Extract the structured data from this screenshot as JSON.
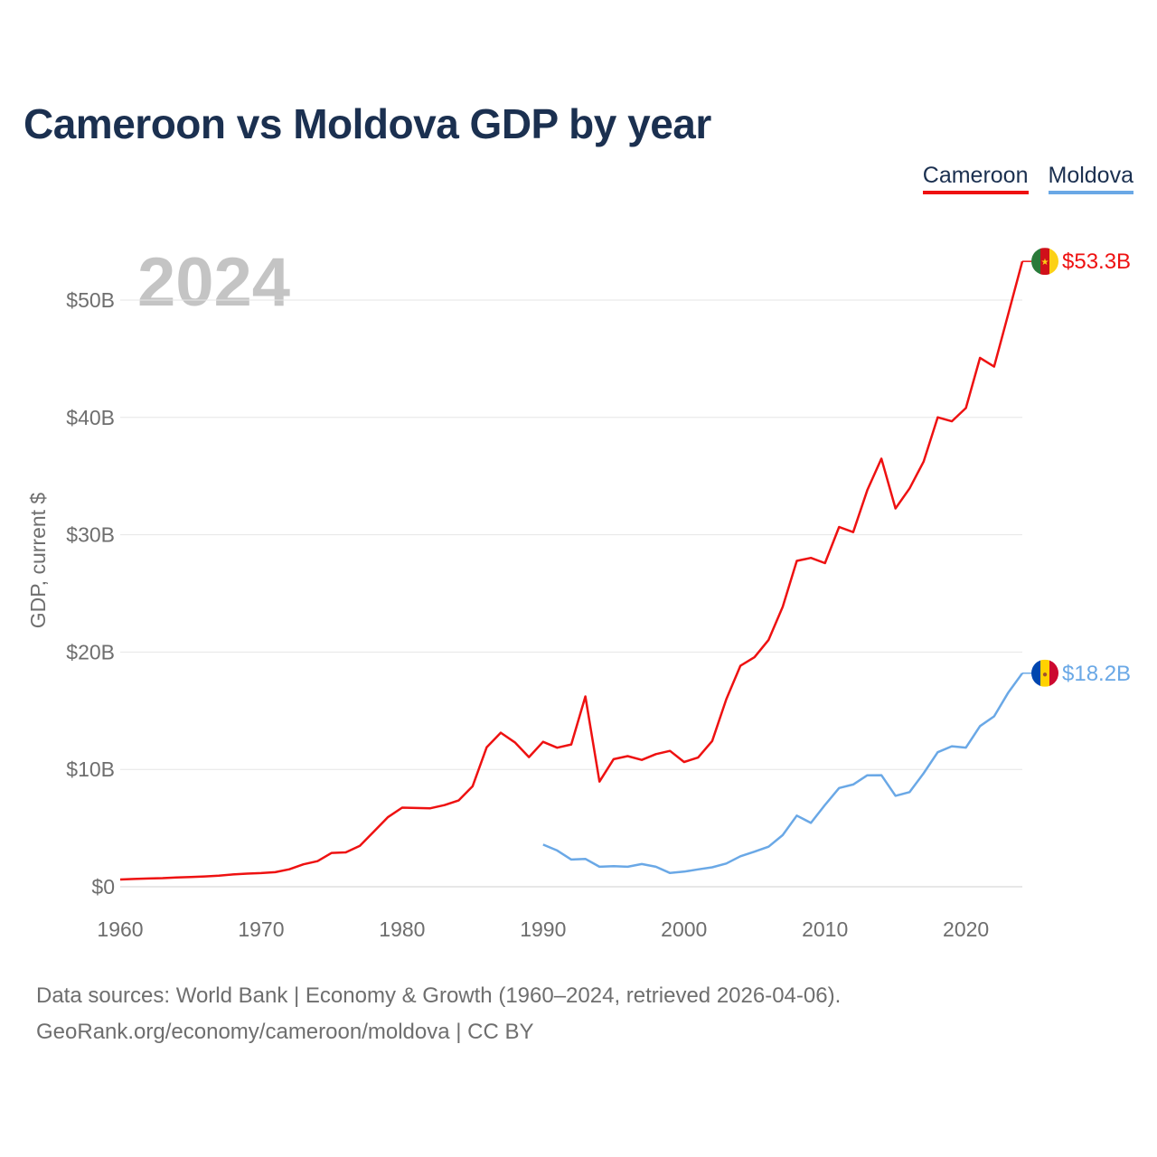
{
  "title": "Cameroon vs Moldova GDP by year",
  "legend": [
    {
      "name": "Cameroon",
      "color": "#ee1111"
    },
    {
      "name": "Moldova",
      "color": "#6aa8e6"
    }
  ],
  "footer": {
    "line1": "Data sources: World Bank | Economy & Growth (1960–2024, retrieved 2026-04-06).",
    "line2": "GeoRank.org/economy/cameroon/moldova | CC BY"
  },
  "chart_data": {
    "type": "line",
    "title": "Cameroon vs Moldova GDP by year",
    "year_label": "2024",
    "xlabel": "",
    "ylabel": "GDP, current $",
    "xlim": [
      1960,
      2024
    ],
    "ylim": [
      0,
      55
    ],
    "x_ticks": [
      1960,
      1970,
      1980,
      1990,
      2000,
      2010,
      2020
    ],
    "y_ticks": [
      0,
      10,
      20,
      30,
      40,
      50
    ],
    "y_tick_labels": [
      "$0",
      "$10B",
      "$20B",
      "$30B",
      "$40B",
      "$50B"
    ],
    "grid": true,
    "series": [
      {
        "name": "Cameroon",
        "color": "#ee1111",
        "end_label": "$53.3B",
        "flag": "cameroon-flag",
        "x": [
          1960,
          1961,
          1962,
          1963,
          1964,
          1965,
          1966,
          1967,
          1968,
          1969,
          1970,
          1971,
          1972,
          1973,
          1974,
          1975,
          1976,
          1977,
          1978,
          1979,
          1980,
          1981,
          1982,
          1983,
          1984,
          1985,
          1986,
          1987,
          1988,
          1989,
          1990,
          1991,
          1992,
          1993,
          1994,
          1995,
          1996,
          1997,
          1998,
          1999,
          2000,
          2001,
          2002,
          2003,
          2004,
          2005,
          2006,
          2007,
          2008,
          2009,
          2010,
          2011,
          2012,
          2013,
          2014,
          2015,
          2016,
          2017,
          2018,
          2019,
          2020,
          2021,
          2022,
          2023,
          2024
        ],
        "values": [
          0.62,
          0.66,
          0.7,
          0.73,
          0.79,
          0.83,
          0.88,
          0.95,
          1.05,
          1.12,
          1.16,
          1.24,
          1.49,
          1.91,
          2.18,
          2.88,
          2.93,
          3.49,
          4.71,
          5.94,
          6.74,
          6.71,
          6.69,
          6.96,
          7.35,
          8.56,
          11.88,
          13.13,
          12.3,
          11.05,
          12.35,
          11.85,
          12.13,
          16.22,
          8.96,
          10.87,
          11.13,
          10.81,
          11.3,
          11.58,
          10.63,
          11.01,
          12.42,
          15.98,
          18.83,
          19.56,
          21.04,
          23.85,
          27.77,
          28.03,
          27.58,
          30.66,
          30.22,
          33.8,
          36.49,
          32.24,
          33.95,
          36.23,
          40.01,
          39.67,
          40.8,
          45.08,
          44.33,
          48.8,
          53.3
        ]
      },
      {
        "name": "Moldova",
        "color": "#6aa8e6",
        "end_label": "$18.2B",
        "flag": "moldova-flag",
        "x": [
          1990,
          1991,
          1992,
          1993,
          1994,
          1995,
          1996,
          1997,
          1998,
          1999,
          2000,
          2001,
          2002,
          2003,
          2004,
          2005,
          2006,
          2007,
          2008,
          2009,
          2010,
          2011,
          2012,
          2013,
          2014,
          2015,
          2016,
          2017,
          2018,
          2019,
          2020,
          2021,
          2022,
          2023,
          2024
        ],
        "values": [
          3.59,
          3.09,
          2.32,
          2.37,
          1.7,
          1.75,
          1.7,
          1.93,
          1.7,
          1.17,
          1.29,
          1.48,
          1.66,
          1.98,
          2.6,
          2.99,
          3.41,
          4.4,
          6.06,
          5.44,
          6.97,
          8.41,
          8.71,
          9.5,
          9.51,
          7.75,
          8.07,
          9.67,
          11.46,
          11.97,
          11.86,
          13.69,
          14.52,
          16.54,
          18.2
        ]
      }
    ]
  }
}
